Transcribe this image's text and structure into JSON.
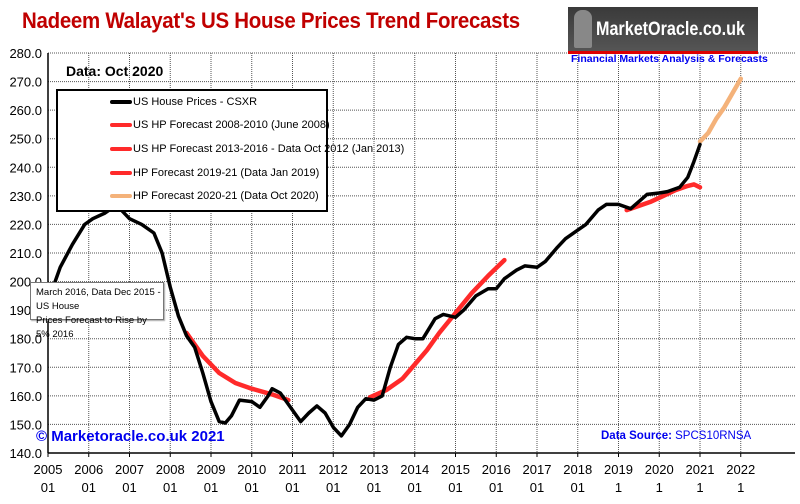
{
  "title": "Nadeem Walayat's US House Prices Trend Forecasts",
  "logo": {
    "text": "MarketOracle.co.uk",
    "subtitle": "Financial Markets Analysis & Forecasts"
  },
  "data_label": "Data:  Oct 2020",
  "annotation": [
    "March 2016, Data Dec 2015 - US House",
    "Prices Forecast to Rise by 5% 2016"
  ],
  "copyright": "© Marketoracle.co.uk 2021",
  "source": {
    "label": "Data Source:",
    "value": "SPCS10RNSA"
  },
  "colors": {
    "title": "#c00000",
    "black": "#000000",
    "red": "#ff2a2a",
    "orange": "#f4b27a",
    "blue_text": "#0000ee"
  },
  "chart_data": {
    "type": "line",
    "ylim": [
      140,
      280
    ],
    "xlim": [
      2005,
      2023.3
    ],
    "grid": true,
    "legend_placement": "top-left",
    "y_ticks": [
      "140.0",
      "150.0",
      "160.0",
      "170.0",
      "180.0",
      "190.0",
      "200.0",
      "210.0",
      "220.0",
      "230.0",
      "240.0",
      "250.0",
      "260.0",
      "270.0",
      "280.0"
    ],
    "x_ticks": [
      [
        "2005",
        "01"
      ],
      [
        "2006",
        "01"
      ],
      [
        "2007",
        "01"
      ],
      [
        "2008",
        "01"
      ],
      [
        "2009",
        "01"
      ],
      [
        "2010",
        "01"
      ],
      [
        "2011",
        "01"
      ],
      [
        "2012",
        "01"
      ],
      [
        "2013",
        "01"
      ],
      [
        "2014",
        "01"
      ],
      [
        "2015",
        "01"
      ],
      [
        "2016",
        "01"
      ],
      [
        "2017",
        "01"
      ],
      [
        "2018",
        "01"
      ],
      [
        "2019",
        "1"
      ],
      [
        "2020",
        "1"
      ],
      [
        "2021",
        "1"
      ],
      [
        "2022",
        "1"
      ]
    ],
    "series": [
      {
        "name": "US House Prices - CSXR",
        "color": "#000000",
        "x": [
          2005.0,
          2005.3,
          2005.6,
          2005.9,
          2006.1,
          2006.4,
          2006.6,
          2006.8,
          2007.0,
          2007.3,
          2007.6,
          2007.8,
          2008.0,
          2008.2,
          2008.4,
          2008.6,
          2008.8,
          2009.0,
          2009.2,
          2009.35,
          2009.5,
          2009.7,
          2010.0,
          2010.2,
          2010.4,
          2010.5,
          2010.7,
          2011.0,
          2011.2,
          2011.4,
          2011.6,
          2011.8,
          2012.0,
          2012.2,
          2012.4,
          2012.6,
          2012.8,
          2013.0,
          2013.2,
          2013.4,
          2013.6,
          2013.8,
          2014.0,
          2014.2,
          2014.5,
          2014.7,
          2015.0,
          2015.2,
          2015.5,
          2015.8,
          2016.0,
          2016.2,
          2016.5,
          2016.7,
          2017.0,
          2017.2,
          2017.5,
          2017.7,
          2018.0,
          2018.2,
          2018.5,
          2018.7,
          2019.0,
          2019.2,
          2019.3,
          2019.5,
          2019.7,
          2020.0,
          2020.2,
          2020.5,
          2020.7,
          2020.85,
          2021.0
        ],
        "y": [
          193,
          205,
          213,
          220,
          222,
          224,
          226,
          225,
          222,
          220,
          217,
          210,
          198,
          188,
          181,
          177,
          168,
          158,
          151,
          150.5,
          153,
          158.5,
          158,
          156,
          160,
          162.5,
          161,
          155,
          151,
          154,
          156.5,
          154,
          149,
          146,
          150,
          156,
          159,
          158.5,
          160,
          170,
          178,
          180.5,
          180,
          180,
          187,
          188.5,
          187.5,
          190,
          195,
          197.5,
          197.5,
          201,
          204,
          205.5,
          205,
          207,
          212,
          215,
          218,
          220,
          225,
          227,
          227,
          226,
          225.5,
          228,
          230.5,
          231,
          231.5,
          233,
          236.5,
          242,
          248
        ]
      },
      {
        "name": "US HP Forecast 2008-2010 (June 2008)",
        "color": "#ff2a2a",
        "x": [
          2008.4,
          2008.8,
          2009.2,
          2009.6,
          2010.0,
          2010.5,
          2010.9
        ],
        "y": [
          182,
          174,
          168,
          164.5,
          162.5,
          160.5,
          158.5
        ]
      },
      {
        "name": "US HP Forecast 2013-2016 - Data Oct 2012 (Jan 2013)",
        "color": "#ff2a2a",
        "x": [
          2012.9,
          2013.3,
          2013.7,
          2014.0,
          2014.3,
          2014.6,
          2015.0,
          2015.4,
          2015.8,
          2016.2
        ],
        "y": [
          159.5,
          162,
          166,
          171,
          176,
          182,
          189,
          196,
          202,
          207.5
        ]
      },
      {
        "name": "HP Forecast 2019-21 (Data Jan 2019)",
        "color": "#ff2a2a",
        "x": [
          2019.2,
          2019.5,
          2019.8,
          2020.1,
          2020.4,
          2020.7,
          2020.85,
          2021.0
        ],
        "y": [
          225,
          226.5,
          228,
          230,
          232,
          233.5,
          234,
          233
        ]
      },
      {
        "name": "HP Forecast 2020-21 (Data Oct 2020)",
        "color": "#f4b27a",
        "x": [
          2021.0,
          2021.2,
          2021.4,
          2021.6,
          2021.8,
          2022.0
        ],
        "y": [
          249,
          252,
          257,
          261,
          266,
          271
        ]
      }
    ]
  }
}
